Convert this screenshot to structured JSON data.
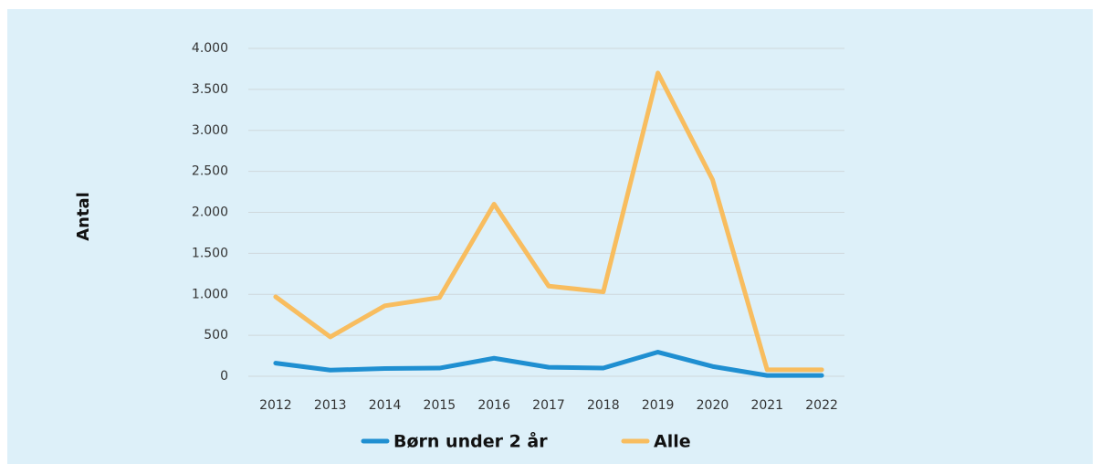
{
  "chart_data": {
    "type": "line",
    "y_label": "Antal",
    "categories": [
      "2012",
      "2013",
      "2014",
      "2015",
      "2016",
      "2017",
      "2018",
      "2019",
      "2020",
      "2021",
      "2022"
    ],
    "series": [
      {
        "name": "Børn under 2 år",
        "color": "#1f8fd1",
        "values": [
          160,
          75,
          95,
          100,
          220,
          110,
          100,
          295,
          120,
          10,
          10
        ]
      },
      {
        "name": "Alle",
        "color": "#f8bd5f",
        "values": [
          970,
          480,
          860,
          960,
          2100,
          1100,
          1030,
          3700,
          2400,
          80,
          80
        ]
      }
    ],
    "ylim": [
      0,
      4000
    ],
    "yticks": [
      0,
      500,
      {
        "value": 1000,
        "label": "1.000"
      },
      {
        "value": 1500,
        "label": "1.500"
      },
      {
        "value": 2000,
        "label": "2.000"
      },
      {
        "value": 2500,
        "label": "2.500"
      },
      {
        "value": 3000,
        "label": "3.000"
      },
      {
        "value": 3500,
        "label": "3.500"
      },
      {
        "value": 4000,
        "label": "4.000"
      }
    ],
    "grid": true,
    "legend": "bottom"
  }
}
